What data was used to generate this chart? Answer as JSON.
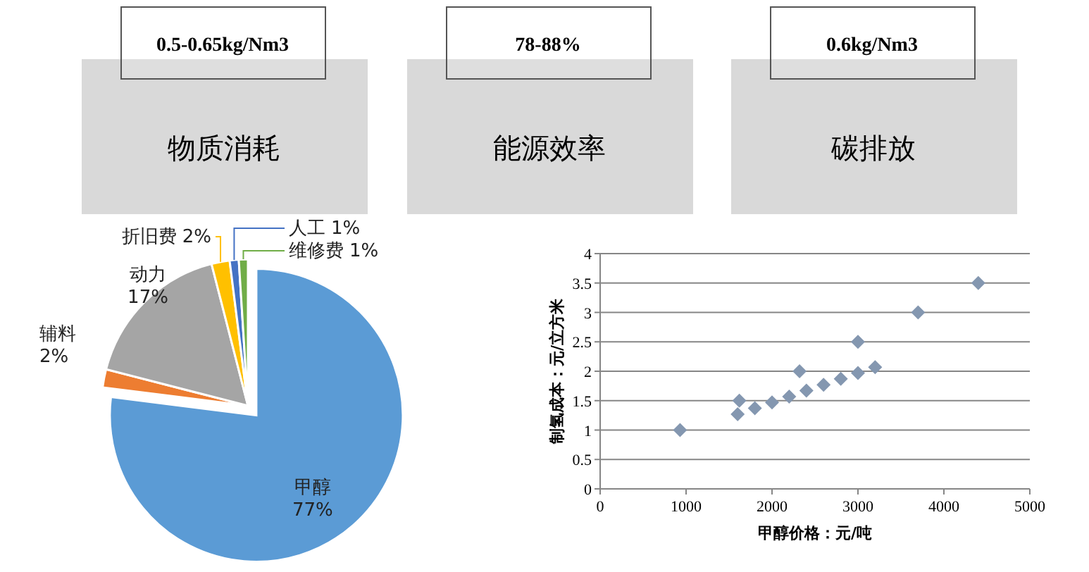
{
  "chart_data": [
    {
      "type": "other",
      "categories": [
        "物质消耗",
        "能源效率",
        "碳排放"
      ],
      "annotations": [
        "0.5-0.65kg/Nm3",
        "78-88%",
        "0.6kg/Nm3"
      ]
    },
    {
      "type": "pie",
      "categories": [
        "甲醇",
        "辅料",
        "动力",
        "折旧费",
        "人工",
        "维修费"
      ],
      "values": [
        77,
        2,
        17,
        2,
        1,
        1
      ],
      "colors": [
        "#5b9bd5",
        "#ed7d31",
        "#a5a5a5",
        "#ffc000",
        "#4472c4",
        "#70ad47"
      ],
      "value_labels": [
        "77%",
        "2%",
        "17%",
        "2%",
        "1%",
        "1%"
      ]
    },
    {
      "type": "scatter",
      "xlabel": "甲醇价格：元/吨",
      "ylabel": "制氢成本：元/立方米",
      "x": [
        930,
        1600,
        1620,
        1800,
        2000,
        2200,
        2320,
        2400,
        2600,
        2800,
        3000,
        3000,
        3200,
        3700,
        4400
      ],
      "series": [
        {
          "color": "#8497b0",
          "values": [
            1.0,
            1.27,
            1.5,
            1.37,
            1.47,
            1.57,
            2.0,
            1.67,
            1.77,
            1.87,
            1.97,
            2.5,
            2.07,
            3.0,
            3.5
          ]
        }
      ],
      "xlim": [
        0,
        5000
      ],
      "xticks": [
        0,
        1000,
        2000,
        3000,
        4000,
        5000
      ],
      "ylim": [
        0,
        4
      ],
      "yticks": [
        0,
        0.5,
        1,
        1.5,
        2,
        2.5,
        3,
        3.5,
        4
      ],
      "grid": "y",
      "marker": "diamond"
    }
  ]
}
